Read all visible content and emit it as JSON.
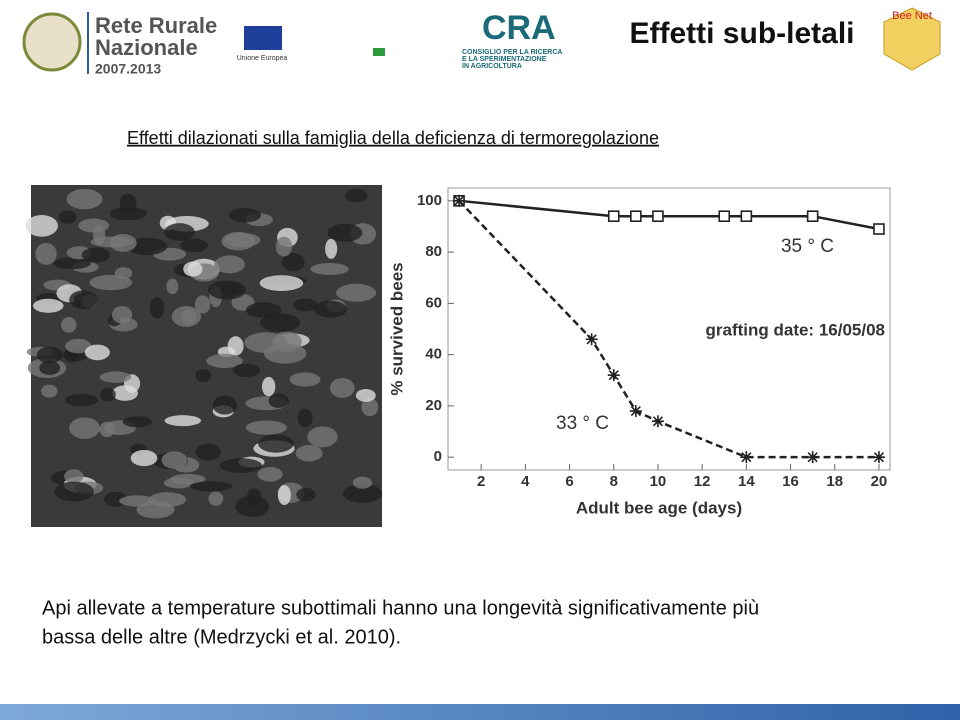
{
  "header": {
    "logo_title": "Rete Rurale",
    "logo_subtitle": "Nazionale",
    "logo_years": "2007.2013",
    "eu_label": "Unione Europea",
    "cra_logo": "CRA",
    "cra_line1": "CONSIGLIO PER LA RICERCA",
    "cra_line2": "E LA SPERIMENTAZIONE",
    "cra_line3": "IN AGRICOLTURA",
    "title": "Effetti sub-letali",
    "beenet": "Bee Net"
  },
  "subtitle": "Effetti dilazionati sulla famiglia della deficienza di termoregolazione",
  "body": [
    "Api allevate a temperature subottimali hanno una longevità significativamente più",
    "bassa delle altre (Medrzycki et al. 2010)."
  ],
  "chart_data": {
    "type": "line",
    "x_label": "Adult bee age (days)",
    "y_label": "% survived bees",
    "annotation": "grafting date: 16/05/08",
    "xlim": [
      0.5,
      20.5
    ],
    "xticks": [
      2,
      4,
      6,
      8,
      10,
      12,
      14,
      16,
      18,
      20
    ],
    "ylim": [
      -5,
      105
    ],
    "yticks": [
      0,
      20,
      40,
      60,
      80,
      100
    ],
    "series": [
      {
        "name": "35 ° C",
        "color": "#222222",
        "marker": "square",
        "dashed": false,
        "x": [
          1,
          8,
          9,
          10,
          13,
          14,
          17,
          20
        ],
        "values": [
          100,
          94,
          94,
          94,
          94,
          94,
          94,
          89
        ]
      },
      {
        "name": "33 ° C",
        "color": "#222222",
        "marker": "asterisk",
        "dashed": true,
        "x": [
          1,
          7,
          8,
          9,
          10,
          14,
          17,
          20
        ],
        "values": [
          100,
          46,
          32,
          18,
          14,
          0,
          0,
          0
        ]
      }
    ]
  }
}
